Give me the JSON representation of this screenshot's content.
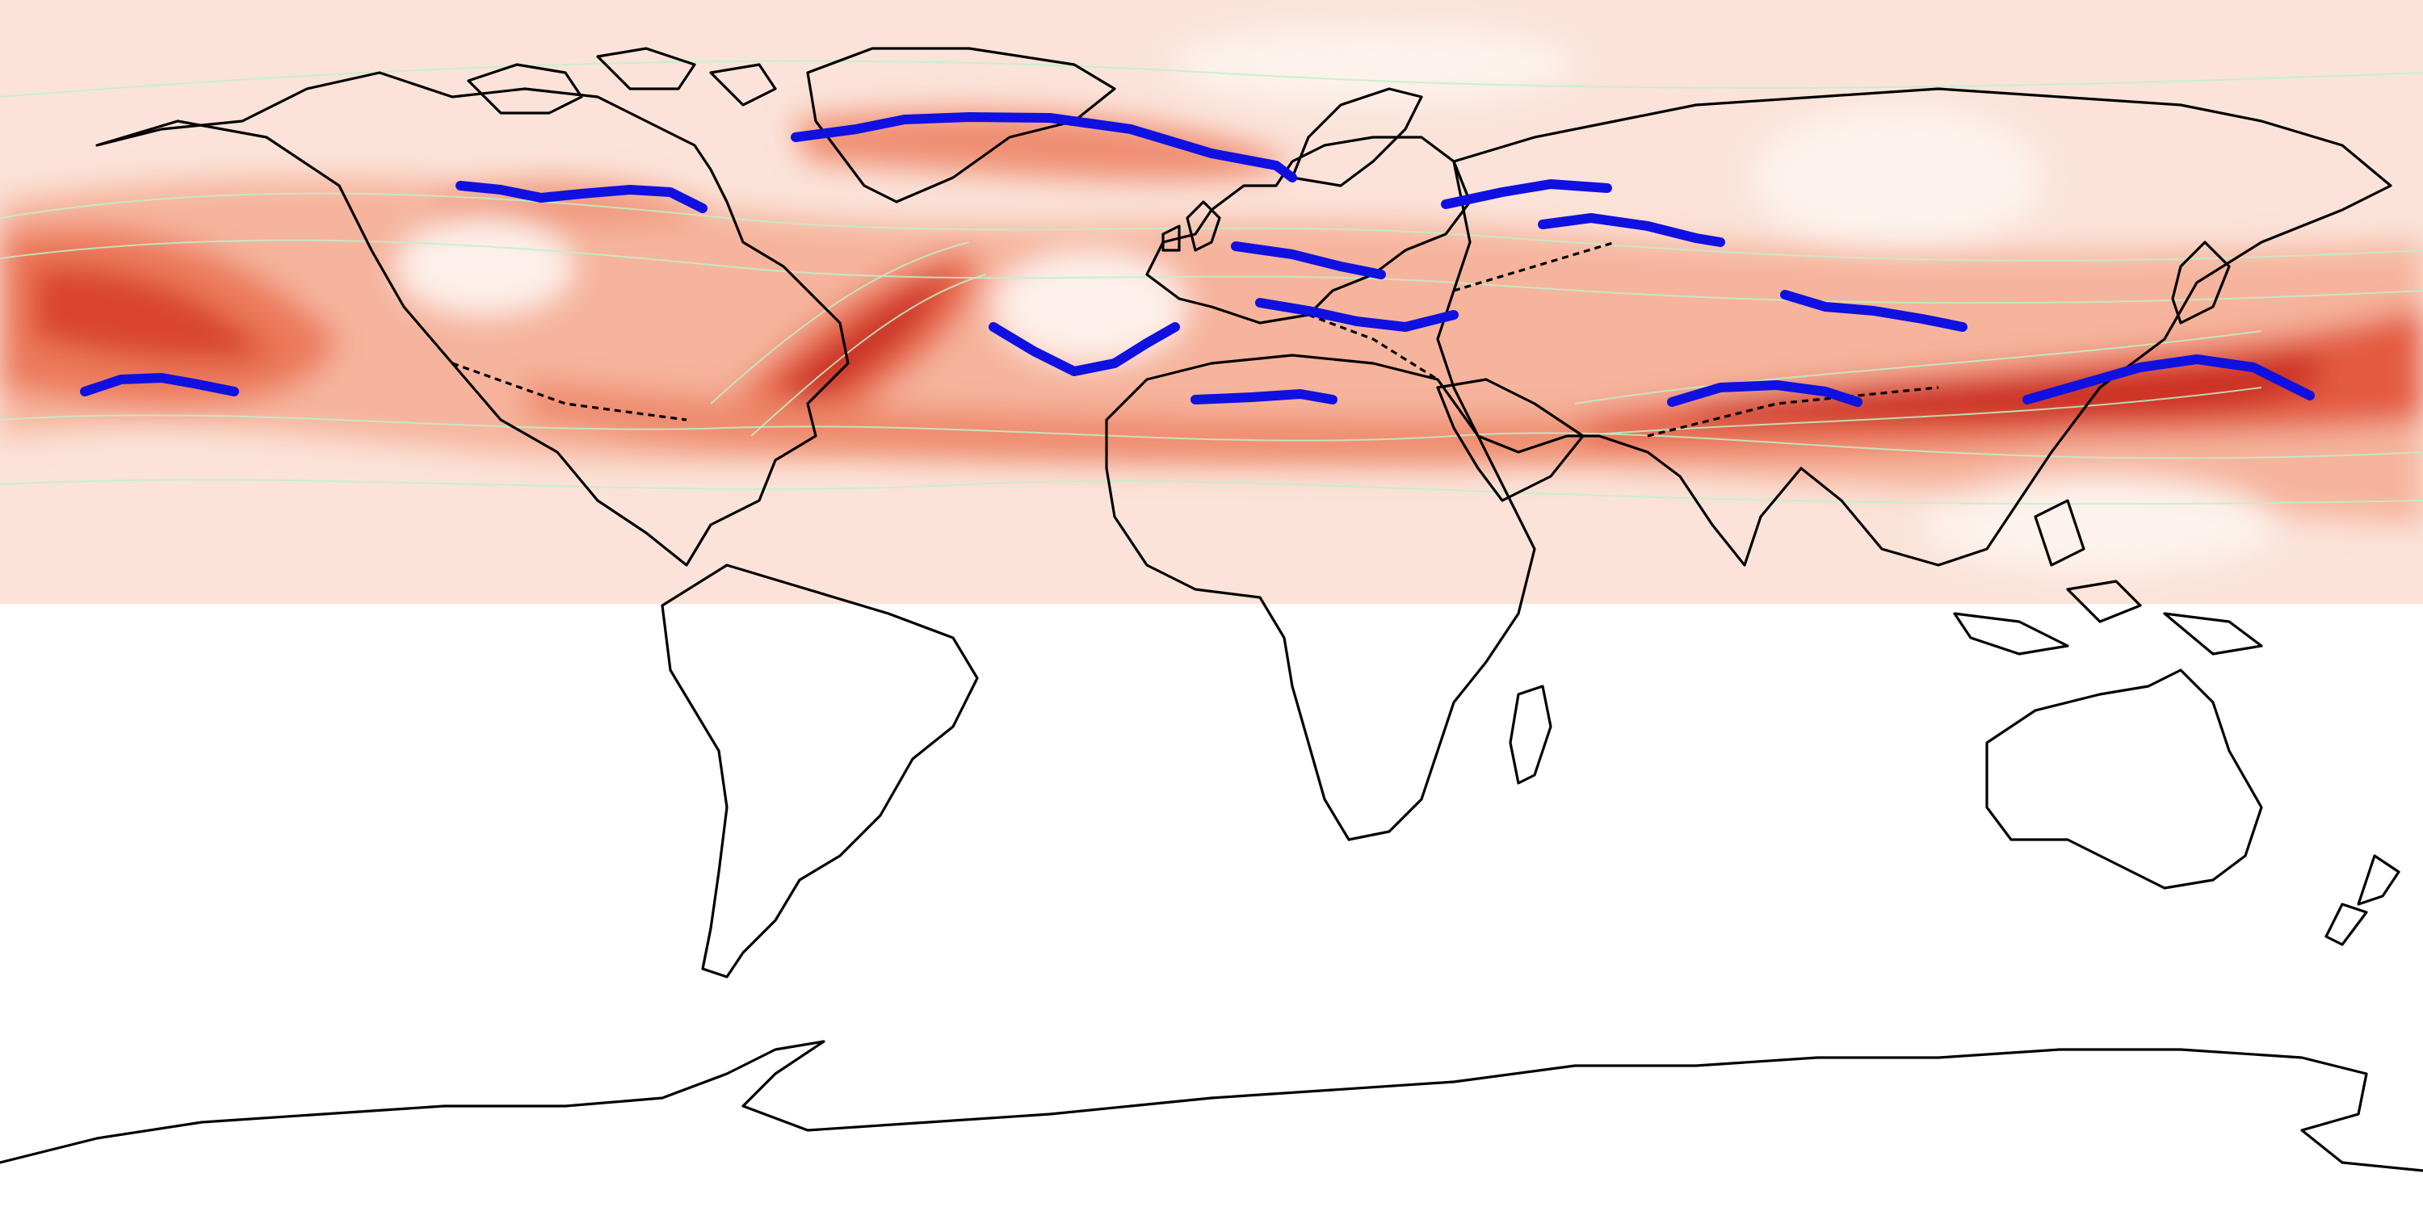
{
  "map": {
    "projection": "equirectangular",
    "field_extent_lat": [
      90,
      15
    ],
    "field_colormap": "Reds",
    "contour_color": "#bff0c8",
    "coastline_color": "#000000",
    "jet_axis_color": "#1010e0",
    "jet_axes_count": 13
  }
}
